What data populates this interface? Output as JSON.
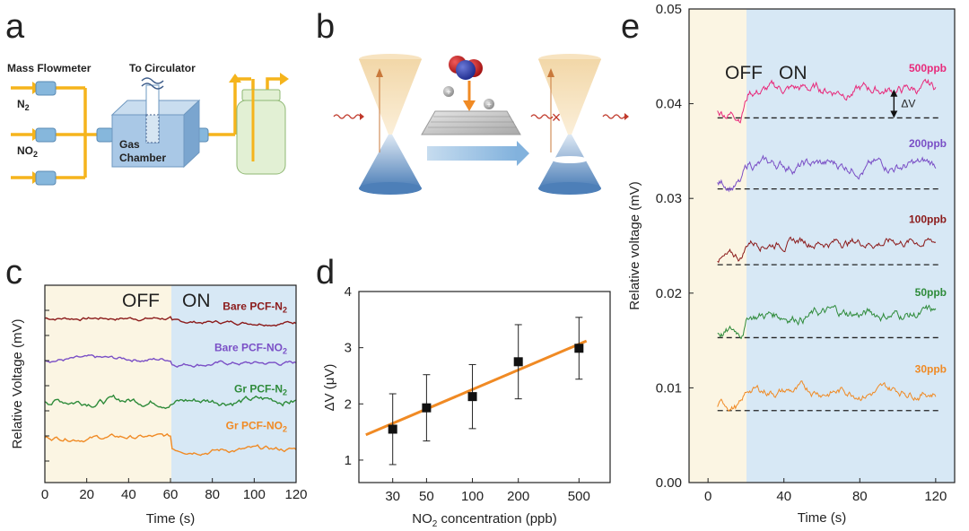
{
  "panels": {
    "a": {
      "label": "a",
      "mass_flowmeter": "Mass Flowmeter",
      "to_circulator": "To Circulator",
      "gas_n2": "N",
      "gas_n2_sub": "2",
      "gas_no2": "NO",
      "gas_no2_sub": "2",
      "gas_chamber_line1": "Gas",
      "gas_chamber_line2": "Chamber"
    },
    "b": {
      "label": "b"
    },
    "c": {
      "label": "c"
    },
    "d": {
      "label": "d"
    },
    "e": {
      "label": "e"
    }
  },
  "colors": {
    "off_region": "#fbf5e3",
    "on_region": "#d7e8f5",
    "orange": "#f08a24",
    "purple": "#7a4fc6",
    "green": "#2e8b3a",
    "darkred": "#8b1a1a",
    "pink": "#e8297a",
    "pipe": "#f5b41c",
    "flowmeter": "#86b7dc"
  },
  "chart_data": [
    {
      "panel": "c",
      "type": "line",
      "xlabel": "Time (s)",
      "ylabel": "Relative Voltage  (mV)",
      "xlim": [
        0,
        120
      ],
      "xticks": [
        "0",
        "20",
        "40",
        "60",
        "80",
        "100",
        "120"
      ],
      "regions": [
        {
          "name": "OFF",
          "from": 0,
          "to": 60
        },
        {
          "name": "ON",
          "from": 60,
          "to": 120
        }
      ],
      "series": [
        {
          "name": "Bare PCF-N",
          "sub": "2",
          "color": "#8b1a1a",
          "level_off": 4.0,
          "level_on": 3.9,
          "noise": 0.06
        },
        {
          "name": "Bare PCF-NO",
          "sub": "2",
          "color": "#7a4fc6",
          "level_off": 3.0,
          "level_on": 2.9,
          "noise": 0.07
        },
        {
          "name": "Gr PCF-N",
          "sub": "2",
          "color": "#2e8b3a",
          "level_off": 2.0,
          "level_on": 2.0,
          "noise": 0.12
        },
        {
          "name": "Gr PCF-NO",
          "sub": "2",
          "color": "#f08a24",
          "level_off": 1.1,
          "level_on": 0.8,
          "noise": 0.08
        }
      ]
    },
    {
      "panel": "d",
      "type": "scatter",
      "xlabel": "NO",
      "xlabel_sub": "2",
      "xlabel_rest": " concentration  (ppb)",
      "ylabel": "ΔV (μV)",
      "xscale": "log",
      "xlim": [
        18,
        800
      ],
      "ylim": [
        0.6,
        4
      ],
      "xticks": [
        "30",
        "50",
        "100",
        "200",
        "500"
      ],
      "yticks": [
        "1",
        "2",
        "3",
        "4"
      ],
      "x": [
        30,
        50,
        100,
        200,
        500
      ],
      "y": [
        1.55,
        1.93,
        2.13,
        2.75,
        2.99
      ],
      "err": [
        0.63,
        0.59,
        0.57,
        0.66,
        0.55
      ],
      "fit": {
        "x0": 20,
        "y0": 1.45,
        "x1": 560,
        "y1": 3.12
      }
    },
    {
      "panel": "e",
      "type": "line",
      "xlabel": "Time (s)",
      "ylabel": "Relative voltage (mV)",
      "xlim": [
        -10,
        130
      ],
      "ylim": [
        0,
        0.05
      ],
      "xticks": [
        "0",
        "40",
        "80",
        "120"
      ],
      "yticks": [
        "0.00",
        "0.01",
        "0.02",
        "0.03",
        "0.04",
        "0.05"
      ],
      "on_time": 18,
      "regions": [
        {
          "name": "OFF",
          "from": -10,
          "to": 18
        },
        {
          "name": "ON",
          "from": 18,
          "to": 130
        }
      ],
      "delta_label": "ΔV",
      "series": [
        {
          "name": "500ppb",
          "color": "#e8297a",
          "baseline": 0.0385,
          "level": 0.0415,
          "noise": 0.0007
        },
        {
          "name": "200ppb",
          "color": "#7a4fc6",
          "baseline": 0.031,
          "level": 0.0335,
          "noise": 0.0007
        },
        {
          "name": "100ppb",
          "color": "#8b1a1a",
          "baseline": 0.023,
          "level": 0.0255,
          "noise": 0.0006
        },
        {
          "name": "50ppb",
          "color": "#2e8b3a",
          "baseline": 0.0153,
          "level": 0.0178,
          "noise": 0.0007
        },
        {
          "name": "30ppb",
          "color": "#f08a24",
          "baseline": 0.0076,
          "level": 0.0097,
          "noise": 0.0006
        }
      ]
    }
  ]
}
